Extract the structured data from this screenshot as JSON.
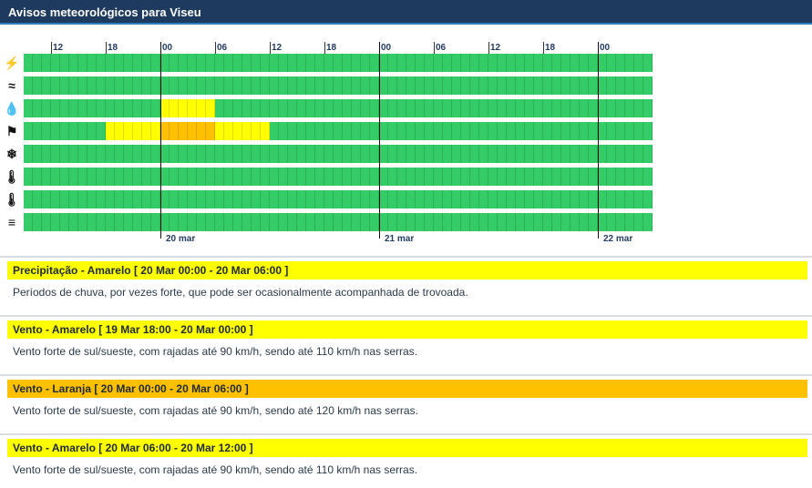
{
  "header": {
    "title": "Avisos meteorológicos para Viseu"
  },
  "timeline": {
    "hours_per_cell": 1,
    "total_hours": 69,
    "hour_labels": [
      {
        "hour": 3,
        "label": "12"
      },
      {
        "hour": 9,
        "label": "18"
      },
      {
        "hour": 15,
        "label": "00"
      },
      {
        "hour": 21,
        "label": "06"
      },
      {
        "hour": 27,
        "label": "12"
      },
      {
        "hour": 33,
        "label": "18"
      },
      {
        "hour": 39,
        "label": "00"
      },
      {
        "hour": 45,
        "label": "06"
      },
      {
        "hour": 51,
        "label": "12"
      },
      {
        "hour": 57,
        "label": "18"
      },
      {
        "hour": 63,
        "label": "00"
      }
    ],
    "day_boundaries": [
      {
        "hour": 15,
        "label": "20 mar"
      },
      {
        "hour": 39,
        "label": "21 mar"
      },
      {
        "hour": 63,
        "label": "22 mar"
      }
    ],
    "level_colors": {
      "green": "#33cc66",
      "yellow": "#ffff00",
      "orange": "#ffc000"
    },
    "rows": [
      {
        "icon": "lightning-icon",
        "glyph": "⚡",
        "segments": []
      },
      {
        "icon": "coastal-wave-icon",
        "glyph": "≈",
        "segments": []
      },
      {
        "icon": "precipitation-icon",
        "glyph": "💧",
        "segments": [
          {
            "start": 15,
            "end": 21,
            "level": "yellow"
          }
        ]
      },
      {
        "icon": "wind-icon",
        "glyph": "⚑",
        "segments": [
          {
            "start": 9,
            "end": 15,
            "level": "yellow"
          },
          {
            "start": 15,
            "end": 21,
            "level": "orange"
          },
          {
            "start": 21,
            "end": 27,
            "level": "yellow"
          }
        ]
      },
      {
        "icon": "snow-icon",
        "glyph": "❄",
        "segments": []
      },
      {
        "icon": "low-temperature-icon",
        "glyph": "🌡",
        "segments": []
      },
      {
        "icon": "high-temperature-icon",
        "glyph": "🌡",
        "segments": []
      },
      {
        "icon": "fog-icon",
        "glyph": "≡",
        "segments": []
      }
    ]
  },
  "warnings": [
    {
      "title": "Precipitação - Amarelo [ 20 Mar 00:00 - 20 Mar 06:00 ]",
      "level": "yellow",
      "text": "Períodos de chuva, por vezes forte, que pode ser ocasionalmente acompanhada de trovoada."
    },
    {
      "title": "Vento - Amarelo [ 19 Mar 18:00 - 20 Mar 00:00 ]",
      "level": "yellow",
      "text": "Vento forte de sul/sueste, com rajadas até 90 km/h, sendo até 110 km/h nas serras."
    },
    {
      "title": "Vento - Laranja [ 20 Mar 00:00 - 20 Mar 06:00 ]",
      "level": "orange",
      "text": "Vento forte de sul/sueste, com rajadas até 90 km/h, sendo até 120 km/h nas serras."
    },
    {
      "title": "Vento - Amarelo [ 20 Mar 06:00 - 20 Mar 12:00 ]",
      "level": "yellow",
      "text": "Vento forte de sul/sueste, com rajadas até 90 km/h, sendo até 110 km/h nas serras."
    }
  ]
}
